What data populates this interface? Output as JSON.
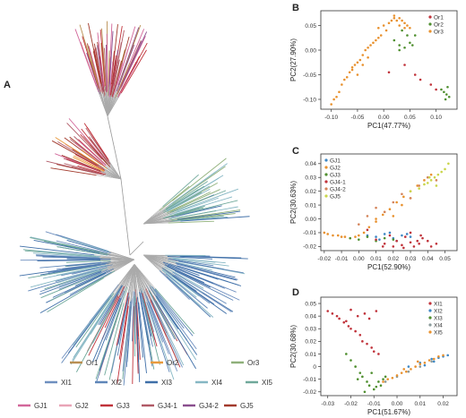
{
  "panel_letters": [
    "A",
    "B",
    "C",
    "D"
  ],
  "colors": {
    "Or1": "#b98f52",
    "Or2": "#e89a3c",
    "Or3": "#8fb07a",
    "XI1": "#6e8fbf",
    "XI2": "#5f86b8",
    "XI3": "#3f6fa8",
    "XI4": "#86b7c4",
    "XI5": "#6fa89a",
    "GJ1": "#d2679a",
    "GJ2": "#e8a4b6",
    "GJ3": "#c0323a",
    "GJ4-1": "#b05a66",
    "GJ4-2": "#8a4e8e",
    "GJ5": "#a23a2c",
    "B_Or1": "#c0323a",
    "B_Or2": "#4f8f2f",
    "B_Or3": "#e8912e",
    "C_GJ1": "#3f88c5",
    "C_GJ2": "#e8912e",
    "C_GJ3": "#4f8f2f",
    "C_GJ4-1": "#c0323a",
    "C_GJ4-2": "#d4845a",
    "C_GJ5": "#c9d54a",
    "D_XI1": "#c0323a",
    "D_XI2": "#3f88c5",
    "D_XI3": "#4f8f2f",
    "D_XI4": "#8a9a9a",
    "D_XI5": "#e8912e"
  },
  "tree_legend": {
    "row1": [
      "Or1",
      "Or2",
      "Or3"
    ],
    "row2": [
      "XI1",
      "XI2",
      "XI3",
      "XI4",
      "XI5"
    ],
    "row3": [
      "GJ1",
      "GJ2",
      "GJ3",
      "GJ4-1",
      "GJ4-2",
      "GJ5"
    ]
  },
  "chart_data": [
    {
      "panel": "B",
      "type": "scatter",
      "xlabel": "PC1(47.77%)",
      "ylabel": "PC2(27.90%)",
      "xlim": [
        -0.12,
        0.14
      ],
      "ylim": [
        -0.12,
        0.08
      ],
      "xticks": [
        -0.1,
        -0.05,
        0.0,
        0.05,
        0.1
      ],
      "xtick_labels": [
        "-0.10",
        "-0.05",
        "0.00",
        "0.05",
        "0.10"
      ],
      "yticks": [
        -0.1,
        -0.05,
        0.0,
        0.05
      ],
      "ytick_labels": [
        "-0.10",
        "-0.05",
        "0.00",
        "0.05"
      ],
      "legend": [
        "Or1",
        "Or2",
        "Or3"
      ],
      "legend_colors": [
        "#c0323a",
        "#4f8f2f",
        "#e8912e"
      ],
      "legend_position": "top-right",
      "series": [
        {
          "name": "Or1",
          "color": "#c0323a",
          "x": [
            0.01,
            0.04,
            0.06,
            0.07,
            0.09,
            0.1
          ],
          "y": [
            -0.045,
            -0.03,
            -0.05,
            -0.06,
            -0.07,
            -0.08
          ]
        },
        {
          "name": "Or2",
          "color": "#4f8f2f",
          "x": [
            0.02,
            0.03,
            0.04,
            0.05,
            0.06,
            0.045,
            0.035,
            0.055,
            0.11,
            0.115,
            0.12,
            0.125,
            0.118,
            0.122,
            0.03
          ],
          "y": [
            0.02,
            0.01,
            0.005,
            0.015,
            0.03,
            0.03,
            0.04,
            0.01,
            -0.08,
            -0.085,
            -0.09,
            -0.095,
            -0.1,
            -0.075,
            0.0
          ]
        },
        {
          "name": "Or3",
          "color": "#e8912e",
          "x": [
            -0.01,
            0.0,
            0.01,
            0.015,
            0.02,
            0.025,
            0.03,
            0.035,
            0.04,
            0.045,
            0.05,
            0.005,
            0.02,
            0.03,
            0.04,
            -0.1,
            -0.095,
            -0.09,
            -0.085,
            -0.08,
            -0.075,
            -0.07,
            -0.065,
            -0.06,
            -0.055,
            -0.05,
            -0.045,
            -0.04,
            -0.035,
            -0.03,
            -0.025,
            -0.02,
            -0.015,
            -0.01,
            -0.005,
            -0.05,
            -0.06,
            -0.04,
            -0.03
          ],
          "y": [
            0.045,
            0.05,
            0.055,
            0.06,
            0.065,
            0.06,
            0.065,
            0.06,
            0.055,
            0.05,
            0.045,
            0.04,
            0.07,
            0.05,
            0.045,
            -0.11,
            -0.1,
            -0.095,
            -0.085,
            -0.07,
            -0.06,
            -0.055,
            -0.045,
            -0.04,
            -0.03,
            -0.025,
            -0.02,
            -0.01,
            0.0,
            0.005,
            0.01,
            0.015,
            0.02,
            0.025,
            0.03,
            -0.05,
            -0.035,
            -0.03,
            -0.015
          ]
        }
      ]
    },
    {
      "panel": "C",
      "type": "scatter",
      "xlabel": "PC1(52.90%)",
      "ylabel": "PC2(30.63%)",
      "xlim": [
        -0.022,
        0.057
      ],
      "ylim": [
        -0.023,
        0.047
      ],
      "xticks": [
        -0.02,
        -0.01,
        0.0,
        0.01,
        0.02,
        0.03,
        0.04,
        0.05
      ],
      "xtick_labels": [
        "-0.02",
        "-0.01",
        "0.00",
        "0.01",
        "0.02",
        "0.03",
        "0.04",
        "0.05"
      ],
      "yticks": [
        -0.02,
        -0.01,
        0.0,
        0.01,
        0.02,
        0.03,
        0.04
      ],
      "ytick_labels": [
        "-0.02",
        "-0.01",
        "0.00",
        "0.01",
        "0.02",
        "0.03",
        "0.04"
      ],
      "legend": [
        "GJ1",
        "GJ2",
        "GJ3",
        "GJ4-1",
        "GJ4-2",
        "GJ5"
      ],
      "legend_colors": [
        "#3f88c5",
        "#e8912e",
        "#4f8f2f",
        "#c0323a",
        "#d4845a",
        "#c9d54a"
      ],
      "legend_position": "top-left",
      "series": [
        {
          "name": "GJ1",
          "color": "#3f88c5",
          "x": [
            0.005,
            0.01,
            0.015,
            0.02,
            0.025,
            0.03,
            0.012,
            0.018,
            0.022,
            0.028
          ],
          "y": [
            -0.012,
            -0.013,
            -0.011,
            -0.014,
            -0.012,
            -0.013,
            -0.015,
            -0.01,
            -0.016,
            -0.011
          ]
        },
        {
          "name": "GJ2",
          "color": "#e8912e",
          "x": [
            -0.02,
            -0.018,
            -0.015,
            -0.012,
            -0.01,
            -0.008,
            -0.005,
            -0.002,
            0.0,
            0.003,
            0.006,
            0.01,
            0.014,
            0.018,
            0.022,
            0.026,
            0.03,
            0.034,
            0.038,
            0.042,
            0.01,
            0.015,
            0.02,
            0.025,
            0.03
          ],
          "y": [
            -0.01,
            -0.011,
            -0.012,
            -0.012,
            -0.013,
            -0.013,
            -0.014,
            -0.013,
            -0.012,
            -0.01,
            -0.006,
            -0.002,
            0.003,
            0.007,
            0.012,
            0.016,
            0.02,
            0.024,
            0.028,
            0.032,
            0.0,
            0.005,
            0.002,
            0.01,
            0.015
          ]
        },
        {
          "name": "GJ3",
          "color": "#4f8f2f",
          "x": [
            -0.005,
            0.0,
            0.005,
            0.01,
            0.015,
            0.02
          ],
          "y": [
            -0.014,
            -0.015,
            -0.013,
            -0.016,
            -0.014,
            -0.015
          ]
        },
        {
          "name": "GJ4-1",
          "color": "#c0323a",
          "x": [
            0.005,
            0.01,
            0.015,
            0.02,
            0.025,
            0.03,
            0.035,
            0.04,
            0.045,
            0.018,
            0.022,
            0.027,
            0.032,
            0.037,
            0.014,
            0.026,
            0.034,
            0.042,
            0.03,
            0.036
          ],
          "y": [
            -0.008,
            -0.015,
            -0.018,
            -0.02,
            -0.019,
            -0.017,
            -0.018,
            -0.016,
            -0.018,
            -0.012,
            -0.016,
            -0.013,
            -0.02,
            -0.014,
            -0.02,
            -0.021,
            -0.016,
            -0.02,
            -0.01,
            -0.012
          ]
        },
        {
          "name": "GJ4-2",
          "color": "#d4845a",
          "x": [
            0.0,
            0.005,
            0.01,
            0.015,
            0.02,
            0.025,
            0.03,
            0.035,
            0.04,
            0.045
          ],
          "y": [
            -0.004,
            0.002,
            0.008,
            0.005,
            0.012,
            0.018,
            0.015,
            0.024,
            0.03,
            0.028
          ]
        },
        {
          "name": "GJ5",
          "color": "#c9d54a",
          "x": [
            0.03,
            0.035,
            0.038,
            0.04,
            0.042,
            0.044,
            0.046,
            0.048,
            0.05,
            0.052,
            0.045,
            0.041
          ],
          "y": [
            0.02,
            0.022,
            0.025,
            0.026,
            0.028,
            0.03,
            0.032,
            0.034,
            0.036,
            0.04,
            0.024,
            0.03
          ]
        }
      ]
    },
    {
      "panel": "D",
      "type": "scatter",
      "xlabel": "PC1(51.67%)",
      "ylabel": "PC2(30.68%)",
      "xlim": [
        -0.033,
        0.026
      ],
      "ylim": [
        -0.023,
        0.055
      ],
      "xticks": [
        -0.03,
        -0.02,
        -0.01,
        0.0,
        0.01,
        0.02
      ],
      "xtick_labels": [
        "-0.03",
        "-0.02",
        "-0.01",
        "0.00",
        "0.01",
        "0.02"
      ],
      "yticks": [
        -0.02,
        -0.01,
        0.0,
        0.01,
        0.02,
        0.03,
        0.04,
        0.05
      ],
      "ytick_labels": [
        "-0.02",
        "-0.01",
        "0",
        "0.01",
        "0.02",
        "0.03",
        "0.04",
        "0.05"
      ],
      "legend": [
        "XI1",
        "XI2",
        "XI3",
        "XI4",
        "XI5"
      ],
      "legend_colors": [
        "#c0323a",
        "#3f88c5",
        "#4f8f2f",
        "#8a9a9a",
        "#e8912e"
      ],
      "legend_position": "top-right",
      "series": [
        {
          "name": "XI1",
          "color": "#c0323a",
          "x": [
            -0.03,
            -0.028,
            -0.026,
            -0.025,
            -0.023,
            -0.021,
            -0.02,
            -0.018,
            -0.016,
            -0.015,
            -0.013,
            -0.011,
            -0.01,
            -0.008,
            -0.02,
            -0.017,
            -0.014,
            -0.012,
            -0.009,
            -0.022
          ],
          "y": [
            0.044,
            0.042,
            0.04,
            0.038,
            0.035,
            0.032,
            0.03,
            0.028,
            0.025,
            0.02,
            0.018,
            0.015,
            0.012,
            0.01,
            0.045,
            0.04,
            0.042,
            0.038,
            0.044,
            0.036
          ]
        },
        {
          "name": "XI2",
          "color": "#3f88c5",
          "x": [
            0.005,
            0.01,
            0.015,
            0.018,
            0.02,
            0.022,
            0.016,
            0.012
          ],
          "y": [
            0.0,
            0.003,
            0.006,
            0.007,
            0.008,
            0.009,
            0.004,
            0.001
          ]
        },
        {
          "name": "XI3",
          "color": "#4f8f2f",
          "x": [
            -0.022,
            -0.02,
            -0.018,
            -0.016,
            -0.015,
            -0.013,
            -0.012,
            -0.01,
            -0.009,
            -0.008,
            -0.006,
            -0.005,
            -0.014,
            -0.011,
            -0.007,
            -0.017
          ],
          "y": [
            0.01,
            0.005,
            0.0,
            -0.005,
            -0.008,
            -0.012,
            -0.015,
            -0.018,
            -0.016,
            -0.012,
            -0.01,
            -0.008,
            -0.02,
            -0.005,
            -0.015,
            -0.01
          ]
        },
        {
          "name": "XI4",
          "color": "#8a9a9a",
          "x": [
            -0.005,
            0.0,
            0.005,
            0.01,
            0.015
          ],
          "y": [
            -0.012,
            -0.008,
            -0.004,
            0.0,
            0.004
          ]
        },
        {
          "name": "XI5",
          "color": "#e8912e",
          "x": [
            -0.006,
            -0.004,
            -0.002,
            0.0,
            0.002,
            0.004,
            0.006,
            0.008,
            0.01,
            0.012,
            0.014,
            0.016,
            0.018,
            0.02,
            0.003,
            0.009
          ],
          "y": [
            -0.012,
            -0.01,
            -0.009,
            -0.007,
            -0.005,
            -0.004,
            -0.002,
            0.0,
            0.002,
            0.003,
            0.005,
            0.006,
            0.008,
            0.009,
            -0.002,
            0.004
          ]
        }
      ]
    }
  ]
}
